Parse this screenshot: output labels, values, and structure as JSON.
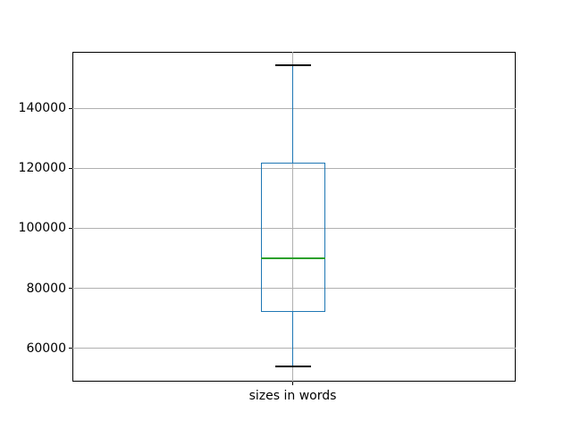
{
  "figure": {
    "background": "#ffffff"
  },
  "chart_data": {
    "type": "boxplot",
    "title": "",
    "categories": [
      "sizes in words"
    ],
    "series": [
      {
        "name": "sizes in words",
        "stats": {
          "whislo": 54000,
          "q1": 72000,
          "med": 90000,
          "q3": 122000,
          "whishi": 154300
        },
        "outliers": []
      }
    ],
    "xlabel": "",
    "ylabel": "",
    "ylim": [
      48900,
      158800
    ],
    "yticks": [
      60000,
      80000,
      100000,
      120000,
      140000
    ],
    "grid": true,
    "legend": false,
    "colors": {
      "box": "#1f77b4",
      "whisker": "#1f77b4",
      "cap": "#000000",
      "median": "#2ca02c",
      "grid": "#b0b0b0",
      "axes_edge": "#000000",
      "text": "#000000"
    }
  }
}
